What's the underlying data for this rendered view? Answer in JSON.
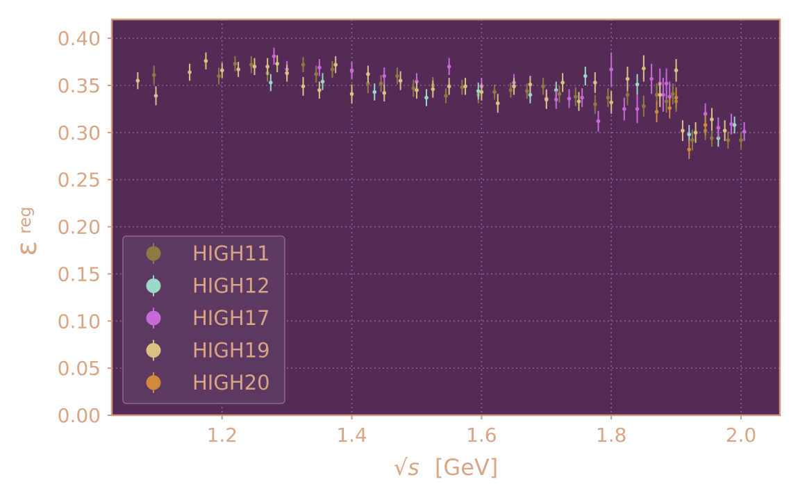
{
  "chart_data": {
    "type": "scatter",
    "title": "",
    "xlabel": "[GeV]",
    "xlabel_symbol": "√s",
    "ylabel": "ε",
    "ylabel_sub": "reg",
    "xlim": [
      1.03,
      2.06
    ],
    "ylim": [
      0.0,
      0.42
    ],
    "x_ticks": [
      1.2,
      1.4,
      1.6,
      1.8,
      2.0
    ],
    "x_tick_labels": [
      "1.2",
      "1.4",
      "1.6",
      "1.8",
      "2.0"
    ],
    "y_ticks": [
      0.0,
      0.05,
      0.1,
      0.15,
      0.2,
      0.25,
      0.3,
      0.35,
      0.4
    ],
    "y_tick_labels": [
      "0.00",
      "0.05",
      "0.10",
      "0.15",
      "0.20",
      "0.25",
      "0.30",
      "0.35",
      "0.40"
    ],
    "grid": true,
    "legend_position": "lower-left",
    "colors": {
      "plot_background": "#542b56",
      "frame": "#cf9a82",
      "text": "#d8a585",
      "grid": "#7b6b95",
      "legend_bg": "#5f3b63",
      "legend_border": "#8b6a8a"
    },
    "series": [
      {
        "name": "HIGH11",
        "color": "#8c7b43",
        "points": [
          {
            "x": 1.095,
            "y": 0.361,
            "err": 0.01
          },
          {
            "x": 1.195,
            "y": 0.36,
            "err": 0.009
          },
          {
            "x": 1.22,
            "y": 0.373,
            "err": 0.008
          },
          {
            "x": 1.245,
            "y": 0.372,
            "err": 0.009
          },
          {
            "x": 1.27,
            "y": 0.363,
            "err": 0.009
          },
          {
            "x": 1.325,
            "y": 0.372,
            "err": 0.008
          },
          {
            "x": 1.345,
            "y": 0.362,
            "err": 0.009
          },
          {
            "x": 1.37,
            "y": 0.367,
            "err": 0.009
          },
          {
            "x": 1.4,
            "y": 0.365,
            "err": 0.009
          },
          {
            "x": 1.425,
            "y": 0.352,
            "err": 0.01
          },
          {
            "x": 1.445,
            "y": 0.352,
            "err": 0.009
          },
          {
            "x": 1.47,
            "y": 0.36,
            "err": 0.009
          },
          {
            "x": 1.495,
            "y": 0.347,
            "err": 0.009
          },
          {
            "x": 1.525,
            "y": 0.35,
            "err": 0.009
          },
          {
            "x": 1.545,
            "y": 0.339,
            "err": 0.008
          },
          {
            "x": 1.57,
            "y": 0.348,
            "err": 0.008
          },
          {
            "x": 1.595,
            "y": 0.34,
            "err": 0.009
          },
          {
            "x": 1.62,
            "y": 0.343,
            "err": 0.008
          },
          {
            "x": 1.645,
            "y": 0.345,
            "err": 0.008
          },
          {
            "x": 1.67,
            "y": 0.344,
            "err": 0.008
          },
          {
            "x": 1.695,
            "y": 0.349,
            "err": 0.009
          },
          {
            "x": 1.72,
            "y": 0.341,
            "err": 0.009
          },
          {
            "x": 1.745,
            "y": 0.338,
            "err": 0.01
          },
          {
            "x": 1.775,
            "y": 0.33,
            "err": 0.01
          },
          {
            "x": 1.795,
            "y": 0.337,
            "err": 0.01
          },
          {
            "x": 1.825,
            "y": 0.34,
            "err": 0.011
          },
          {
            "x": 1.85,
            "y": 0.328,
            "err": 0.011
          },
          {
            "x": 1.87,
            "y": 0.34,
            "err": 0.012
          },
          {
            "x": 1.885,
            "y": 0.333,
            "err": 0.012
          },
          {
            "x": 1.895,
            "y": 0.341,
            "err": 0.011
          },
          {
            "x": 1.9,
            "y": 0.333,
            "err": 0.011
          },
          {
            "x": 1.925,
            "y": 0.292,
            "err": 0.011
          },
          {
            "x": 1.945,
            "y": 0.302,
            "err": 0.01
          },
          {
            "x": 1.955,
            "y": 0.294,
            "err": 0.009
          },
          {
            "x": 1.98,
            "y": 0.292,
            "err": 0.009
          },
          {
            "x": 2.0,
            "y": 0.292,
            "err": 0.009
          }
        ]
      },
      {
        "name": "HIGH12",
        "color": "#9ad9c8",
        "points": [
          {
            "x": 1.275,
            "y": 0.353,
            "err": 0.009
          },
          {
            "x": 1.355,
            "y": 0.354,
            "err": 0.009
          },
          {
            "x": 1.435,
            "y": 0.343,
            "err": 0.009
          },
          {
            "x": 1.515,
            "y": 0.337,
            "err": 0.009
          },
          {
            "x": 1.595,
            "y": 0.344,
            "err": 0.009
          },
          {
            "x": 1.675,
            "y": 0.34,
            "err": 0.009
          },
          {
            "x": 1.715,
            "y": 0.345,
            "err": 0.009
          },
          {
            "x": 1.76,
            "y": 0.36,
            "err": 0.01
          },
          {
            "x": 1.84,
            "y": 0.351,
            "err": 0.011
          },
          {
            "x": 1.92,
            "y": 0.298,
            "err": 0.01
          },
          {
            "x": 1.965,
            "y": 0.294,
            "err": 0.009
          },
          {
            "x": 1.99,
            "y": 0.308,
            "err": 0.009
          }
        ]
      },
      {
        "name": "HIGH17",
        "color": "#c86bd8",
        "points": [
          {
            "x": 1.28,
            "y": 0.381,
            "err": 0.009
          },
          {
            "x": 1.3,
            "y": 0.367,
            "err": 0.009
          },
          {
            "x": 1.35,
            "y": 0.369,
            "err": 0.009
          },
          {
            "x": 1.4,
            "y": 0.366,
            "err": 0.009
          },
          {
            "x": 1.45,
            "y": 0.36,
            "err": 0.009
          },
          {
            "x": 1.5,
            "y": 0.354,
            "err": 0.009
          },
          {
            "x": 1.55,
            "y": 0.37,
            "err": 0.009
          },
          {
            "x": 1.6,
            "y": 0.349,
            "err": 0.009
          },
          {
            "x": 1.65,
            "y": 0.353,
            "err": 0.009
          },
          {
            "x": 1.7,
            "y": 0.336,
            "err": 0.01
          },
          {
            "x": 1.715,
            "y": 0.335,
            "err": 0.01
          },
          {
            "x": 1.735,
            "y": 0.336,
            "err": 0.01
          },
          {
            "x": 1.755,
            "y": 0.337,
            "err": 0.01
          },
          {
            "x": 1.78,
            "y": 0.312,
            "err": 0.011
          },
          {
            "x": 1.8,
            "y": 0.367,
            "err": 0.018
          },
          {
            "x": 1.82,
            "y": 0.325,
            "err": 0.012
          },
          {
            "x": 1.84,
            "y": 0.325,
            "err": 0.015
          },
          {
            "x": 1.862,
            "y": 0.357,
            "err": 0.016
          },
          {
            "x": 1.875,
            "y": 0.352,
            "err": 0.016
          },
          {
            "x": 1.88,
            "y": 0.34,
            "err": 0.018
          },
          {
            "x": 1.885,
            "y": 0.352,
            "err": 0.016
          },
          {
            "x": 1.89,
            "y": 0.338,
            "err": 0.016
          },
          {
            "x": 1.945,
            "y": 0.32,
            "err": 0.011
          },
          {
            "x": 1.965,
            "y": 0.305,
            "err": 0.011
          },
          {
            "x": 1.985,
            "y": 0.309,
            "err": 0.011
          },
          {
            "x": 2.005,
            "y": 0.301,
            "err": 0.01
          }
        ]
      },
      {
        "name": "HIGH19",
        "color": "#d9c382",
        "points": [
          {
            "x": 1.07,
            "y": 0.355,
            "err": 0.009
          },
          {
            "x": 1.098,
            "y": 0.339,
            "err": 0.01
          },
          {
            "x": 1.15,
            "y": 0.364,
            "err": 0.009
          },
          {
            "x": 1.175,
            "y": 0.376,
            "err": 0.009
          },
          {
            "x": 1.2,
            "y": 0.366,
            "err": 0.008
          },
          {
            "x": 1.225,
            "y": 0.367,
            "err": 0.008
          },
          {
            "x": 1.25,
            "y": 0.37,
            "err": 0.009
          },
          {
            "x": 1.27,
            "y": 0.37,
            "err": 0.009
          },
          {
            "x": 1.285,
            "y": 0.373,
            "err": 0.009
          },
          {
            "x": 1.3,
            "y": 0.363,
            "err": 0.009
          },
          {
            "x": 1.325,
            "y": 0.349,
            "err": 0.01
          },
          {
            "x": 1.35,
            "y": 0.345,
            "err": 0.009
          },
          {
            "x": 1.375,
            "y": 0.372,
            "err": 0.009
          },
          {
            "x": 1.4,
            "y": 0.341,
            "err": 0.01
          },
          {
            "x": 1.425,
            "y": 0.362,
            "err": 0.009
          },
          {
            "x": 1.45,
            "y": 0.342,
            "err": 0.009
          },
          {
            "x": 1.475,
            "y": 0.355,
            "err": 0.01
          },
          {
            "x": 1.5,
            "y": 0.345,
            "err": 0.009
          },
          {
            "x": 1.525,
            "y": 0.346,
            "err": 0.009
          },
          {
            "x": 1.55,
            "y": 0.349,
            "err": 0.009
          },
          {
            "x": 1.575,
            "y": 0.349,
            "err": 0.009
          },
          {
            "x": 1.6,
            "y": 0.343,
            "err": 0.009
          },
          {
            "x": 1.625,
            "y": 0.331,
            "err": 0.01
          },
          {
            "x": 1.65,
            "y": 0.349,
            "err": 0.009
          },
          {
            "x": 1.675,
            "y": 0.351,
            "err": 0.009
          },
          {
            "x": 1.7,
            "y": 0.335,
            "err": 0.01
          },
          {
            "x": 1.725,
            "y": 0.353,
            "err": 0.01
          },
          {
            "x": 1.75,
            "y": 0.333,
            "err": 0.01
          },
          {
            "x": 1.775,
            "y": 0.353,
            "err": 0.011
          },
          {
            "x": 1.8,
            "y": 0.332,
            "err": 0.012
          },
          {
            "x": 1.825,
            "y": 0.357,
            "err": 0.013
          },
          {
            "x": 1.85,
            "y": 0.368,
            "err": 0.014
          },
          {
            "x": 1.875,
            "y": 0.34,
            "err": 0.013
          },
          {
            "x": 1.9,
            "y": 0.366,
            "err": 0.012
          },
          {
            "x": 1.91,
            "y": 0.302,
            "err": 0.011
          },
          {
            "x": 1.93,
            "y": 0.3,
            "err": 0.011
          },
          {
            "x": 1.955,
            "y": 0.314,
            "err": 0.012
          },
          {
            "x": 1.975,
            "y": 0.302,
            "err": 0.011
          }
        ]
      },
      {
        "name": "HIGH20",
        "color": "#d08a3c",
        "points": [
          {
            "x": 1.87,
            "y": 0.322,
            "err": 0.011
          },
          {
            "x": 1.89,
            "y": 0.326,
            "err": 0.011
          },
          {
            "x": 1.9,
            "y": 0.337,
            "err": 0.011
          },
          {
            "x": 1.92,
            "y": 0.282,
            "err": 0.01
          },
          {
            "x": 1.945,
            "y": 0.308,
            "err": 0.011
          }
        ]
      }
    ]
  }
}
